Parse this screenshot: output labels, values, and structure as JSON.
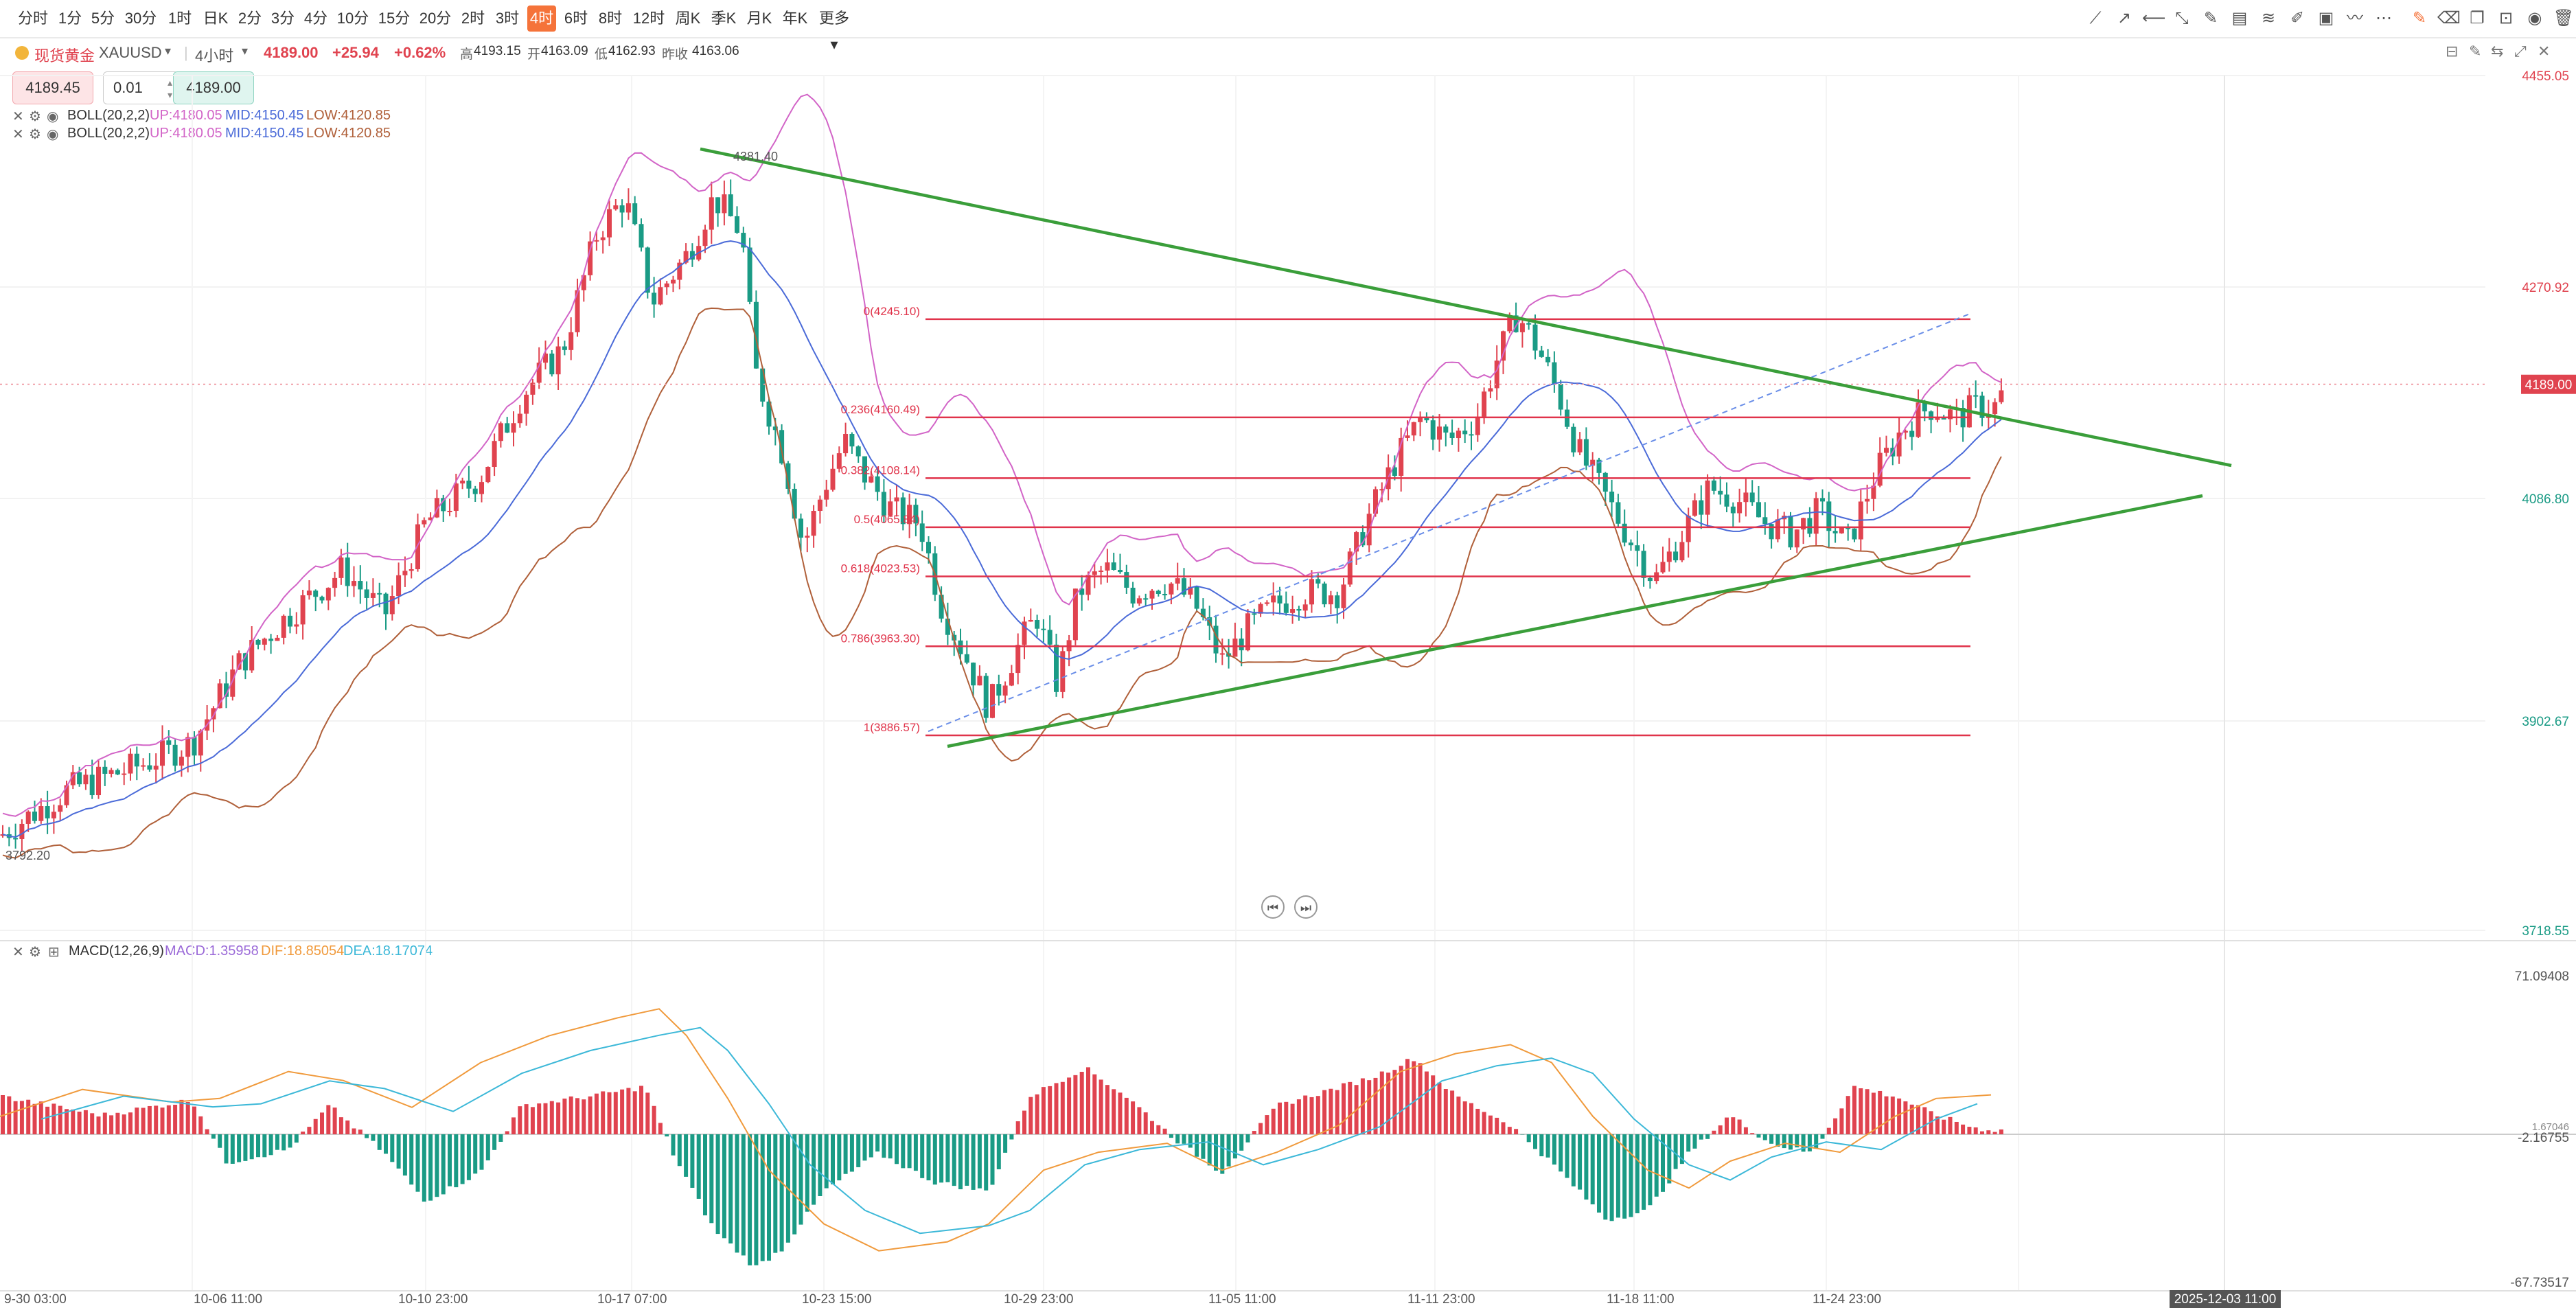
{
  "toolbar": {
    "periods": [
      "分时",
      "1分",
      "5分",
      "30分",
      "1时",
      "日K",
      "2分",
      "3分",
      "4分",
      "10分",
      "15分",
      "20分",
      "2时",
      "3时",
      "4时",
      "6时",
      "8时",
      "12时",
      "周K",
      "季K",
      "月K",
      "年K",
      "更多"
    ],
    "active_period": "4时",
    "right_tools": [
      "trend-line-icon",
      "ray-icon",
      "horizontal-line-icon",
      "segment-icon",
      "pencil-icon",
      "parallel-channel-icon",
      "fib-icon",
      "brush-icon",
      "picture-icon",
      "wave-icon",
      "more-dots-icon",
      "edit-icon",
      "eraser-icon",
      "layers-icon",
      "lock-icon",
      "eye-icon",
      "trash-icon"
    ]
  },
  "symbol": {
    "name": "现货黄金",
    "code": "XAUUSD",
    "interval": "4小时",
    "price": "4189.00",
    "change": "+25.94",
    "change_pct": "+0.62%",
    "high_label": "高",
    "high": "4193.15",
    "open_label": "开",
    "open": "4163.09",
    "low_label": "低",
    "low": "4162.93",
    "prev_label": "昨收",
    "prev": "4163.06"
  },
  "trade": {
    "sell_price": "4189.45",
    "qty": "0.01",
    "buy_price": "4189.00"
  },
  "indicators": [
    {
      "name": "BOLL(20,2,2)",
      "up": "UP:4180.05",
      "mid": "MID:4150.45",
      "low": "LOW:4120.85"
    },
    {
      "name": "BOLL(20,2,2)",
      "up": "UP:4180.05",
      "mid": "MID:4150.45",
      "low": "LOW:4120.85"
    }
  ],
  "macd_legend": {
    "name": "MACD(12,26,9)",
    "macd": "MACD:1.35958",
    "dif": "DIF:18.85054",
    "dea": "DEA:18.17074"
  },
  "price_axis": [
    "4455.05",
    "4270.92",
    "4086.80",
    "3902.67",
    "3718.55"
  ],
  "current_price_tag": "4189.00",
  "macd_axis": [
    "71.09408",
    "-2.16755",
    "-67.73517"
  ],
  "macd_axis_small": "1.67046",
  "time_axis": [
    "9-30 03:00",
    "10-06 11:00",
    "10-10 23:00",
    "10-17 07:00",
    "10-23 15:00",
    "10-29 23:00",
    "11-05 11:00",
    "11-11 23:00",
    "11-18 11:00",
    "11-24 23:00"
  ],
  "cursor_time": "2025-12-03 11:00",
  "annotations": {
    "high_mark": "4381.40",
    "low_mark": "3792.20"
  },
  "fib_levels": [
    {
      "label": "0(4245.10)",
      "price": 4245.1
    },
    {
      "label": "0.236(4160.49)",
      "price": 4160.49
    },
    {
      "label": "0.382(4108.14)",
      "price": 4108.14
    },
    {
      "label": "0.5(4065.84)",
      "price": 4065.84
    },
    {
      "label": "0.618(4023.53)",
      "price": 4023.53
    },
    {
      "label": "0.786(3963.30)",
      "price": 3963.3
    },
    {
      "label": "1(3886.57)",
      "price": 3886.57
    }
  ],
  "colors": {
    "up": "#e0434f",
    "down": "#1a9b85",
    "boll_up": "#d264c7",
    "boll_mid": "#4a6ad8",
    "boll_low": "#b0603a",
    "fib": "#e0334a",
    "trend": "#3a9e3a",
    "dif": "#f09a3c",
    "dea": "#3cb8d8",
    "accent": "#f5733a"
  }
}
